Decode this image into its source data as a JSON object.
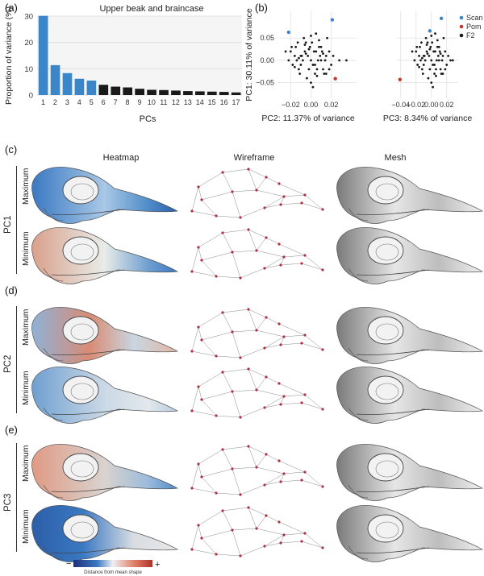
{
  "panels": {
    "a": "(a)",
    "b": "(b)",
    "c": "(c)",
    "d": "(d)",
    "e": "(e)"
  },
  "columns": [
    "Heatmap",
    "Wireframe",
    "Mesh"
  ],
  "rows": {
    "max": "Maximum",
    "min": "Minimum"
  },
  "pcs": [
    "PC1",
    "PC2",
    "PC3"
  ],
  "legend": {
    "minus": "−",
    "plus": "+",
    "label": "Distance from mean shape"
  },
  "colors": {
    "blue": "#3a86c8",
    "black": "#1a1a1a",
    "red": "#c0392b",
    "heat_blue": "#2c5fa8",
    "heat_red": "#d9664a"
  },
  "chart_data": [
    {
      "type": "bar",
      "title": "Upper beak and braincase",
      "xlabel": "PCs",
      "ylabel": "Proportion of variance (%)",
      "ylim": [
        0,
        30
      ],
      "yticks": [
        0,
        10,
        20,
        30
      ],
      "categories": [
        "1",
        "2",
        "3",
        "4",
        "5",
        "6",
        "7",
        "8",
        "9",
        "10",
        "11",
        "12",
        "13",
        "14",
        "15",
        "16",
        "17"
      ],
      "values": [
        30.11,
        11.37,
        8.34,
        6.2,
        5.5,
        3.9,
        3.2,
        2.9,
        2.4,
        2.0,
        1.9,
        1.7,
        1.5,
        1.4,
        1.3,
        1.2,
        1.0
      ],
      "highlighted_count": 5,
      "grid": true
    },
    {
      "type": "scatter",
      "xlabel": "PC2: 11.37% of variance",
      "ylabel": "PC1: 30.11% of variance",
      "xticks": [
        -0.02,
        0.0,
        0.02
      ],
      "xtick_labels": [
        "−0.02",
        "0.00",
        "0.02"
      ],
      "yticks": [
        -0.05,
        0.0,
        0.05
      ],
      "ytick_labels": [
        "−0.05",
        "0.00",
        "0.05"
      ],
      "xlim": [
        -0.033,
        0.045
      ],
      "ylim": [
        -0.085,
        0.11
      ],
      "series": [
        {
          "name": "Scan",
          "color": "#3a86c8",
          "x": [
            -0.022,
            0.021
          ],
          "y": [
            0.063,
            0.091
          ]
        },
        {
          "name": "Pom",
          "color": "#c0392b",
          "x": [
            0.024
          ],
          "y": [
            -0.041
          ]
        },
        {
          "name": "F2",
          "color": "#1a1a1a",
          "x": [
            -0.02,
            -0.015,
            -0.01,
            -0.005,
            0.0,
            0.005,
            0.01,
            0.015,
            -0.018,
            -0.012,
            -0.008,
            -0.003,
            0.002,
            0.007,
            0.012,
            0.018,
            -0.022,
            -0.016,
            -0.011,
            -0.006,
            -0.001,
            0.004,
            0.009,
            0.014,
            0.02,
            -0.013,
            -0.007,
            -0.002,
            0.003,
            0.008,
            0.013,
            -0.009,
            -0.004,
            0.001,
            0.006,
            0.011,
            0.016,
            -0.019,
            -0.014,
            0.005,
            0.01,
            0.0,
            -0.005,
            0.015,
            0.022,
            -0.025,
            0.028,
            0.035,
            -0.01,
            0.004,
            -0.002,
            0.008,
            0.012,
            -0.006,
            0.002,
            0.018,
            -0.016,
            0.0,
            0.006,
            -0.012
          ],
          "y": [
            0.02,
            0.03,
            0.01,
            0.04,
            0.0,
            0.02,
            0.03,
            0.01,
            -0.01,
            -0.02,
            0.0,
            0.01,
            -0.01,
            0.0,
            -0.02,
            0.02,
            0.0,
            0.01,
            -0.03,
            0.02,
            0.03,
            -0.01,
            0.01,
            0.0,
            -0.01,
            0.04,
            0.05,
            -0.02,
            0.02,
            0.03,
            -0.03,
            0.01,
            -0.04,
            0.04,
            -0.02,
            0.02,
            0.05,
            0.03,
            0.0,
            0.06,
            0.0,
            -0.05,
            0.015,
            -0.03,
            0.01,
            0.02,
            0.0,
            0.0,
            -0.01,
            -0.03,
            0.025,
            0.045,
            0.015,
            0.035,
            -0.06,
            -0.02,
            -0.015,
            0.055,
            -0.035,
            0.005
          ]
        }
      ],
      "legend": "right"
    },
    {
      "type": "scatter",
      "xlabel": "PC3: 8.34% of variance",
      "xticks": [
        -0.04,
        -0.02,
        0.0,
        0.02
      ],
      "xtick_labels": [
        "−0.04",
        "−0.02",
        "0.00",
        "0.02"
      ],
      "xlim": [
        -0.045,
        0.035
      ],
      "ylim": [
        -0.085,
        0.11
      ],
      "series": [
        {
          "name": "Scan",
          "color": "#3a86c8",
          "x": [
            -0.002,
            0.013
          ],
          "y": [
            0.066,
            0.094
          ]
        },
        {
          "name": "Pom",
          "color": "#c0392b",
          "x": [
            -0.041
          ],
          "y": [
            -0.043
          ]
        },
        {
          "name": "F2",
          "color": "#1a1a1a",
          "x": [
            -0.02,
            -0.015,
            -0.01,
            -0.005,
            0.0,
            0.005,
            0.01,
            0.015,
            -0.018,
            -0.012,
            -0.008,
            -0.003,
            0.002,
            0.007,
            0.012,
            0.018,
            -0.022,
            -0.016,
            -0.011,
            -0.006,
            -0.001,
            0.004,
            0.009,
            0.014,
            0.02,
            -0.013,
            -0.007,
            -0.002,
            0.003,
            0.008,
            0.013,
            -0.009,
            -0.004,
            0.001,
            0.006,
            0.011,
            0.016,
            -0.019,
            -0.014,
            0.005,
            0.01,
            0.0,
            -0.005,
            0.015,
            0.022,
            -0.025,
            0.025,
            0.028,
            -0.01,
            0.004,
            -0.002,
            0.008,
            0.012,
            -0.006,
            0.002,
            0.018,
            -0.016,
            0.0,
            0.006,
            -0.012
          ],
          "y": [
            0.02,
            0.03,
            0.01,
            0.04,
            0.0,
            0.02,
            0.03,
            0.01,
            -0.01,
            -0.02,
            0.0,
            0.01,
            -0.01,
            0.0,
            -0.02,
            0.02,
            0.0,
            0.01,
            -0.03,
            0.02,
            0.03,
            -0.01,
            0.01,
            0.0,
            -0.01,
            0.04,
            0.05,
            -0.02,
            0.02,
            0.03,
            -0.03,
            0.01,
            -0.04,
            0.04,
            -0.02,
            0.02,
            0.05,
            0.03,
            0.0,
            0.06,
            0.0,
            -0.05,
            0.015,
            -0.03,
            0.01,
            0.02,
            0.0,
            0.0,
            -0.01,
            -0.03,
            0.025,
            0.045,
            0.015,
            0.035,
            -0.06,
            -0.02,
            -0.015,
            0.055,
            -0.035,
            0.005
          ]
        }
      ]
    }
  ]
}
